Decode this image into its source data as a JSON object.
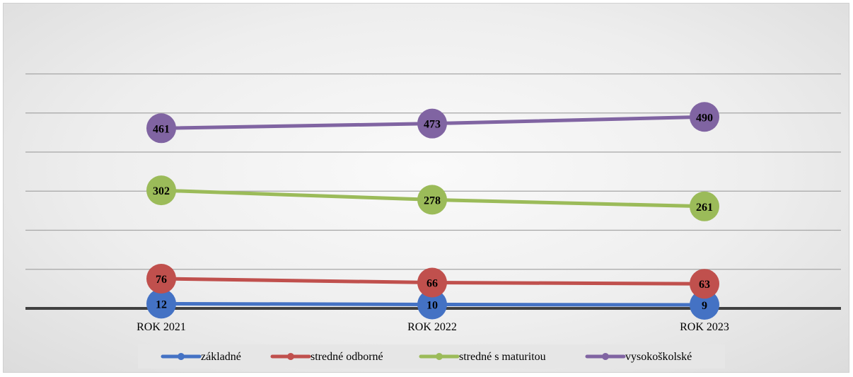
{
  "chart_data": {
    "type": "line",
    "categories": [
      "ROK 2021",
      "ROK 2022",
      "ROK 2023"
    ],
    "series": [
      {
        "name": "základné",
        "values": [
          12,
          10,
          9
        ],
        "color": "#4472C4"
      },
      {
        "name": "stredné odborné",
        "values": [
          76,
          66,
          63
        ],
        "color": "#C0504D"
      },
      {
        "name": "stredné s maturitou",
        "values": [
          302,
          278,
          261
        ],
        "color": "#9BBB59"
      },
      {
        "name": "vysokoškolské",
        "values": [
          461,
          473,
          490
        ],
        "color": "#8064A2"
      }
    ],
    "ylim": [
      0,
      600
    ],
    "grid": true,
    "legend_position": "bottom",
    "marker": "circle",
    "data_labels": true
  }
}
